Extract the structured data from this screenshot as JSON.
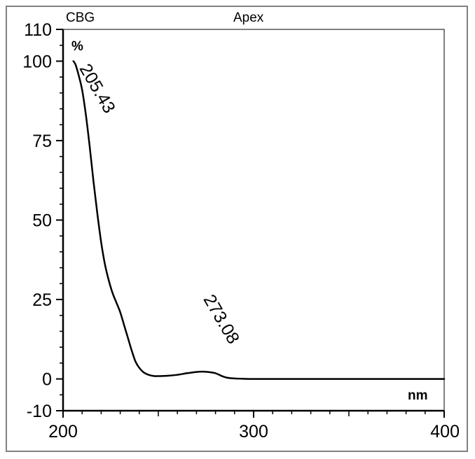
{
  "header": {
    "left_label": "CBG",
    "center_label": "Apex"
  },
  "chart_data": {
    "type": "line",
    "title": "",
    "ylabel": "%",
    "xlabel": "nm",
    "xlim": [
      200,
      400
    ],
    "ylim": [
      -10,
      110
    ],
    "y_ticks": [
      {
        "value": 110,
        "label": "110"
      },
      {
        "value": 100,
        "label": "100"
      },
      {
        "value": 75,
        "label": "75"
      },
      {
        "value": 50,
        "label": "50"
      },
      {
        "value": 25,
        "label": "25"
      },
      {
        "value": 0,
        "label": "0"
      },
      {
        "value": -10,
        "label": "-10"
      }
    ],
    "x_ticks": [
      {
        "value": 200,
        "label": "200"
      },
      {
        "value": 300,
        "label": "300"
      },
      {
        "value": 400,
        "label": "400"
      }
    ],
    "grid": false,
    "series": [
      {
        "x": [
          205.43,
          206.5,
          208,
          210,
          212,
          214,
          216,
          218,
          220,
          222,
          224,
          226,
          228,
          230,
          232,
          234,
          236,
          238,
          240,
          242,
          244,
          246,
          248,
          250,
          255,
          260,
          265,
          270,
          273.08,
          276,
          280,
          283,
          286,
          290,
          295,
          300,
          320,
          350,
          380,
          400
        ],
        "y": [
          100,
          99,
          96,
          91,
          83,
          73,
          62,
          52,
          43,
          36,
          31,
          27,
          24,
          21,
          17,
          13,
          9,
          5.5,
          3.5,
          2.2,
          1.5,
          1.1,
          0.9,
          0.9,
          1.0,
          1.3,
          1.8,
          2.2,
          2.3,
          2.2,
          1.8,
          1.0,
          0.4,
          0.15,
          0.05,
          0,
          0,
          0,
          0,
          0
        ]
      }
    ],
    "annotations": [
      {
        "x": 205.43,
        "y": 100,
        "label": "205.43"
      },
      {
        "x": 273.08,
        "y": 2.3,
        "label": "273.08"
      }
    ]
  }
}
